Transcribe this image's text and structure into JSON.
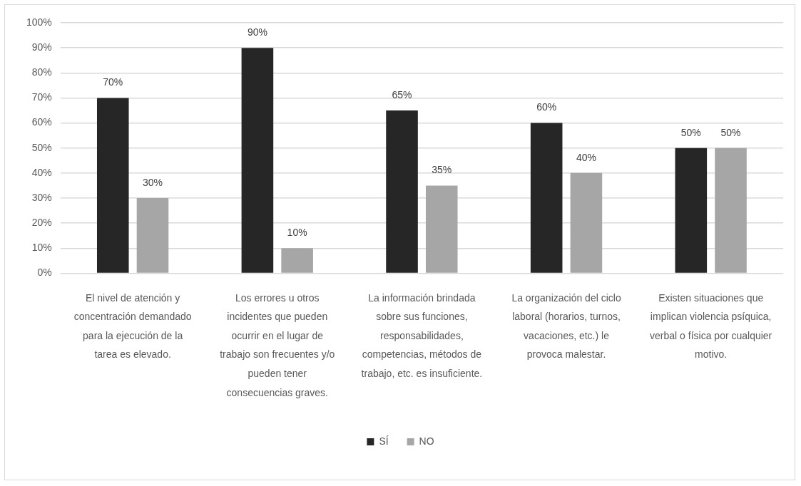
{
  "chart_data": {
    "type": "bar",
    "categories": [
      "El nivel de atención y concentración demandado para la ejecución de la tarea es elevado.",
      "Los errores u otros incidentes que pueden ocurrir en el lugar de trabajo son frecuentes y/o pueden tener consecuencias graves.",
      "La información brindada sobre sus funciones, responsabilidades, competencias, métodos de trabajo, etc. es insuficiente.",
      "La organización del ciclo laboral (horarios, turnos, vacaciones, etc.) le provoca malestar.",
      "Existen situaciones que implican violencia psíquica, verbal o física por cualquier motivo."
    ],
    "series": [
      {
        "name": "SÍ",
        "color": "#262626",
        "values": [
          70,
          90,
          65,
          60,
          50
        ],
        "value_labels": [
          "70%",
          "90%",
          "65%",
          "60%",
          "50%"
        ]
      },
      {
        "name": "NO",
        "color": "#a6a6a6",
        "values": [
          30,
          10,
          35,
          40,
          50
        ],
        "value_labels": [
          "30%",
          "10%",
          "35%",
          "40%",
          "50%"
        ]
      }
    ],
    "ylim": [
      0,
      100
    ],
    "yticks": [
      {
        "value": 0,
        "label": "0%"
      },
      {
        "value": 10,
        "label": "10%"
      },
      {
        "value": 20,
        "label": "20%"
      },
      {
        "value": 30,
        "label": "30%"
      },
      {
        "value": 40,
        "label": "40%"
      },
      {
        "value": 50,
        "label": "50%"
      },
      {
        "value": 60,
        "label": "60%"
      },
      {
        "value": 70,
        "label": "70%"
      },
      {
        "value": 80,
        "label": "80%"
      },
      {
        "value": 90,
        "label": "90%"
      },
      {
        "value": 100,
        "label": "100%"
      }
    ],
    "grid": "y",
    "legend": "bottom"
  }
}
